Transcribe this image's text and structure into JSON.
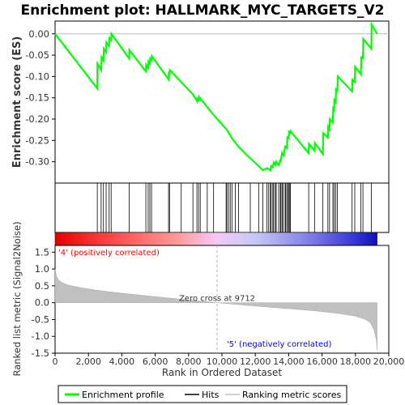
{
  "chart_data": {
    "type": "line",
    "title": "Enrichment plot: HALLMARK_MYC_TARGETS_V2",
    "xlabel": "Rank in Ordered Dataset",
    "es_panel": {
      "ylabel": "Enrichment score (ES)",
      "ylim": [
        -0.35,
        0.03
      ],
      "yticks": [
        0.0,
        -0.05,
        -0.1,
        -0.15,
        -0.2,
        -0.25,
        -0.3
      ],
      "ytick_labels": [
        "0.00",
        "-0.05",
        "-0.10",
        "-0.15",
        "-0.20",
        "-0.25",
        "-0.30"
      ],
      "series_name": "Enrichment profile",
      "color": "#00ff00",
      "x": [
        0,
        2530,
        2540,
        2760,
        2780,
        2900,
        2920,
        3060,
        3080,
        3240,
        3260,
        3360,
        3380,
        4440,
        4450,
        5440,
        5460,
        5580,
        5600,
        5680,
        5700,
        5780,
        5800,
        6800,
        6820,
        6860,
        6880,
        7560,
        8260,
        8500,
        8520,
        8600,
        8620,
        8700,
        8720,
        9120,
        9500,
        10250,
        10300,
        10400,
        10500,
        10600,
        10800,
        11000,
        11700,
        12200,
        12450,
        12700,
        12800,
        12900,
        12950,
        13050,
        13100,
        13200,
        13250,
        13400,
        13500,
        13520,
        13600,
        13620,
        13700,
        13800,
        13820,
        13900,
        13920,
        14000,
        14020,
        14080,
        14100,
        15200,
        15220,
        15550,
        15570,
        16050,
        16070,
        16350,
        16370,
        16450,
        16470,
        16650,
        16670,
        16720,
        16740,
        16820,
        16840,
        16920,
        16940,
        17800,
        17820,
        17960,
        17980,
        18330,
        18350,
        18450,
        18470,
        18950,
        18970,
        19300
      ],
      "y": [
        0.0,
        -0.128,
        -0.07,
        -0.085,
        -0.055,
        -0.063,
        -0.035,
        -0.043,
        -0.02,
        -0.028,
        -0.01,
        -0.015,
        0.0,
        -0.058,
        -0.038,
        -0.088,
        -0.073,
        -0.08,
        -0.065,
        -0.07,
        -0.058,
        -0.062,
        -0.052,
        -0.107,
        -0.093,
        -0.095,
        -0.085,
        -0.113,
        -0.142,
        -0.158,
        -0.152,
        -0.156,
        -0.148,
        -0.154,
        -0.152,
        -0.172,
        -0.19,
        -0.223,
        -0.225,
        -0.232,
        -0.238,
        -0.245,
        -0.255,
        -0.265,
        -0.292,
        -0.31,
        -0.32,
        -0.315,
        -0.317,
        -0.32,
        -0.31,
        -0.313,
        -0.302,
        -0.308,
        -0.3,
        -0.308,
        -0.297,
        -0.298,
        -0.28,
        -0.282,
        -0.285,
        -0.262,
        -0.265,
        -0.268,
        -0.243,
        -0.245,
        -0.23,
        -0.232,
        -0.228,
        -0.28,
        -0.258,
        -0.274,
        -0.256,
        -0.282,
        -0.233,
        -0.243,
        -0.218,
        -0.224,
        -0.2,
        -0.208,
        -0.175,
        -0.178,
        -0.155,
        -0.16,
        -0.13,
        -0.133,
        -0.1,
        -0.135,
        -0.108,
        -0.113,
        -0.077,
        -0.095,
        -0.055,
        -0.057,
        -0.012,
        -0.035,
        0.022,
        0.0
      ]
    },
    "hits_panel": {
      "series_name": "Hits",
      "positions": [
        2530,
        2760,
        2900,
        3060,
        3240,
        3360,
        4440,
        5440,
        5580,
        5680,
        5780,
        6800,
        6860,
        7560,
        8260,
        8500,
        8600,
        8700,
        9120,
        9500,
        10250,
        10300,
        10400,
        10500,
        10600,
        10800,
        11000,
        11700,
        12200,
        12450,
        12700,
        12800,
        12900,
        12950,
        13050,
        13100,
        13200,
        13250,
        13400,
        13500,
        13520,
        13600,
        13620,
        13700,
        13800,
        13820,
        13900,
        13920,
        14000,
        14020,
        14080,
        14100,
        15200,
        15550,
        16050,
        16350,
        16450,
        16650,
        16720,
        16820,
        16920,
        17800,
        17960,
        18330,
        18450,
        18950
      ]
    },
    "metric_panel": {
      "ylabel": "Ranked list metric (Signal2Noise)",
      "ylim": [
        -1.5,
        1.7
      ],
      "yticks": [
        1.5,
        1.0,
        0.5,
        0.0,
        -0.5,
        -1.0,
        -1.5
      ],
      "ytick_labels": [
        "1.5",
        "1.0",
        "0.5",
        "0.0",
        "-0.5",
        "-1.0",
        "-1.5"
      ],
      "series_name": "Ranking metric scores",
      "zero_cross_label": "Zero cross at 9712",
      "zero_cross_x": 9712,
      "pos_label": "'4' (positively correlated)",
      "neg_label": "'5' (negatively correlated)",
      "x": [
        0,
        80,
        200,
        400,
        800,
        1500,
        2500,
        4000,
        6000,
        8000,
        9712,
        11500,
        13500,
        15500,
        17000,
        18000,
        18600,
        18900,
        19100,
        19250,
        19300
      ],
      "y": [
        1.0,
        0.8,
        0.68,
        0.6,
        0.52,
        0.45,
        0.37,
        0.28,
        0.18,
        0.08,
        0.0,
        -0.08,
        -0.16,
        -0.24,
        -0.32,
        -0.4,
        -0.5,
        -0.6,
        -0.8,
        -1.1,
        -1.4
      ]
    },
    "xlim": [
      0,
      20000
    ],
    "xticks": [
      0,
      2000,
      4000,
      6000,
      8000,
      10000,
      12000,
      14000,
      16000,
      18000,
      20000
    ],
    "xtick_labels": [
      "0",
      "2,000",
      "4,000",
      "6,000",
      "8,000",
      "10,000",
      "12,000",
      "14,000",
      "16,000",
      "18,000",
      "20,000"
    ],
    "dataset_size": 19300,
    "legend": {
      "placement": "bottom",
      "items": [
        {
          "label": "Enrichment profile",
          "color": "#00ff00"
        },
        {
          "label": "Hits",
          "color": "#000000"
        },
        {
          "label": "Ranking metric scores",
          "color": "#c0c0c0"
        }
      ]
    },
    "colors": {
      "profile": "#00ff00",
      "positive_label": "#ff0000",
      "negative_label": "#0000ff",
      "metric_fill": "#c0c0c0",
      "frame": "#000000"
    }
  }
}
